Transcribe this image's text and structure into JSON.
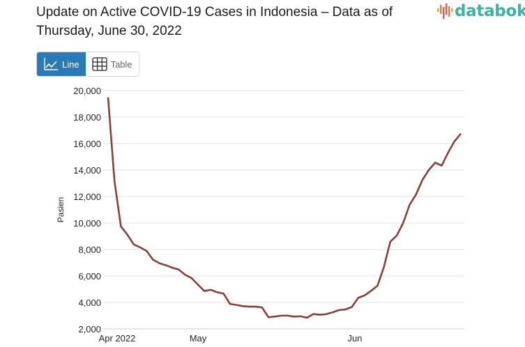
{
  "header": {
    "title": "Update on Active COVID-19 Cases in Indonesia – Data as of Thursday, June 30, 2022",
    "logo_text": "databoks"
  },
  "view_toggle": {
    "line_label": "Line",
    "table_label": "Table",
    "active": "Line",
    "line_icon": "line-chart-icon",
    "table_icon": "table-grid-icon",
    "active_color": "#2a7ab8"
  },
  "chart_data": {
    "type": "line",
    "title": "Update on Active COVID-19 Cases in Indonesia – Data as of Thursday, June 30, 2022",
    "xlabel": "",
    "ylabel": "Pasien",
    "ylim": [
      2000,
      20000
    ],
    "yticks": [
      "2,000",
      "4,000",
      "6,000",
      "8,000",
      "10,000",
      "12,000",
      "14,000",
      "16,000",
      "18,000",
      "20,000"
    ],
    "xticks": [
      "Apr 2022",
      "May",
      "Jun"
    ],
    "grid": true,
    "legend": "none",
    "color": "#8b3f35",
    "series": [
      {
        "values": [
          19490,
          13160,
          9740,
          9120,
          8380,
          8160,
          7890,
          7230,
          6960,
          6810,
          6620,
          6490,
          6090,
          5840,
          5350,
          4860,
          4950,
          4770,
          4670,
          3890,
          3810,
          3720,
          3680,
          3680,
          3620,
          2880,
          2930,
          3000,
          3000,
          2930,
          2950,
          2840,
          3120,
          3070,
          3110,
          3250,
          3420,
          3470,
          3650,
          4350,
          4530,
          4880,
          5260,
          6670,
          8590,
          9040,
          10000,
          11370,
          12140,
          13250,
          14000,
          14560,
          14330,
          15300,
          16170,
          16750
        ]
      }
    ]
  }
}
